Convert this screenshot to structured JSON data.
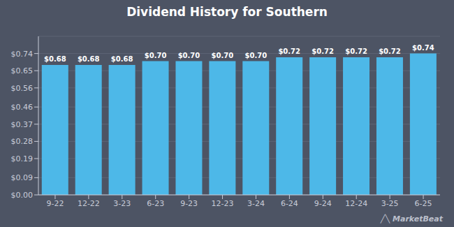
{
  "chart_data": {
    "type": "bar",
    "title": "Dividend History for Southern",
    "categories": [
      "9-22",
      "12-22",
      "3-23",
      "6-23",
      "9-23",
      "12-23",
      "3-24",
      "6-24",
      "9-24",
      "12-24",
      "3-25",
      "6-25"
    ],
    "values": [
      0.68,
      0.68,
      0.68,
      0.7,
      0.7,
      0.7,
      0.7,
      0.72,
      0.72,
      0.72,
      0.72,
      0.74
    ],
    "value_labels": [
      "$0.68",
      "$0.68",
      "$0.68",
      "$0.70",
      "$0.70",
      "$0.70",
      "$0.70",
      "$0.72",
      "$0.72",
      "$0.72",
      "$0.72",
      "$0.74"
    ],
    "data_labels": true,
    "color": "#4db8e8",
    "ylim": [
      0.0,
      0.83
    ],
    "yticks": [
      {
        "value": 0.0,
        "label": "$0.00"
      },
      {
        "value": 0.09,
        "label": "$0.09"
      },
      {
        "value": 0.19,
        "label": "$0.19"
      },
      {
        "value": 0.28,
        "label": "$0.28"
      },
      {
        "value": 0.37,
        "label": "$0.37"
      },
      {
        "value": 0.46,
        "label": "$0.46"
      },
      {
        "value": 0.56,
        "label": "$0.56"
      },
      {
        "value": 0.65,
        "label": "$0.65"
      },
      {
        "value": 0.74,
        "label": "$0.74"
      }
    ],
    "grid": true,
    "annotations": [
      "╱╲",
      "MarketBeat"
    ]
  }
}
